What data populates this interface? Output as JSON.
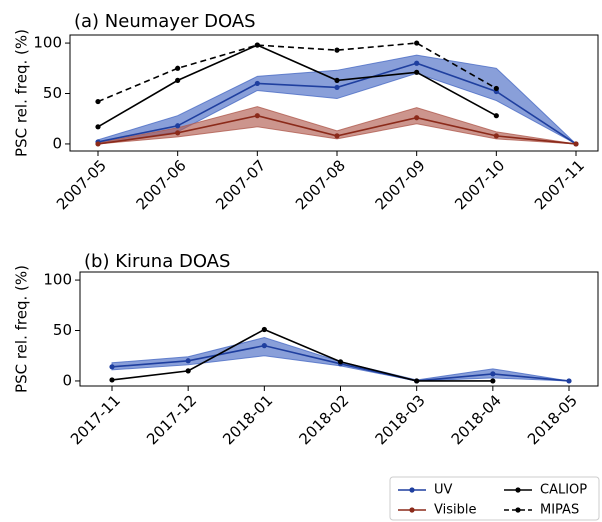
{
  "chart_data": [
    {
      "type": "line",
      "title": "(a) Neumayer DOAS",
      "ylabel": "PSC rel. freq. (%)",
      "categories": [
        "2007-05",
        "2007-06",
        "2007-07",
        "2007-08",
        "2007-09",
        "2007-10",
        "2007-11"
      ],
      "ylim": [
        -7,
        108
      ],
      "yticks": [
        0,
        50,
        100
      ],
      "series": [
        {
          "name": "UV",
          "color": "#1f3f9f",
          "band_color": "#4a6cc4",
          "linestyle": "solid",
          "values": [
            2,
            18,
            60,
            56,
            80,
            52,
            0
          ],
          "lower": [
            0,
            12,
            53,
            45,
            70,
            43,
            0
          ],
          "upper": [
            4,
            28,
            67,
            73,
            88,
            75,
            0
          ]
        },
        {
          "name": "Visible",
          "color": "#8b2a1a",
          "band_color": "#b05c50",
          "linestyle": "solid",
          "values": [
            0,
            11,
            28,
            8,
            26,
            8,
            0
          ],
          "lower": [
            0,
            7,
            17,
            5,
            20,
            5,
            0
          ],
          "upper": [
            1,
            16,
            37,
            13,
            36,
            12,
            0
          ]
        },
        {
          "name": "CALIOP",
          "color": "#000000",
          "linestyle": "solid",
          "values": [
            17,
            63,
            98,
            63,
            71,
            28,
            null
          ]
        },
        {
          "name": "MIPAS",
          "color": "#000000",
          "linestyle": "dashed",
          "values": [
            42,
            75,
            98,
            93,
            100,
            55,
            null
          ]
        }
      ]
    },
    {
      "type": "line",
      "title": "(b) Kiruna DOAS",
      "ylabel": "PSC rel. freq. (%)",
      "categories": [
        "2017-11",
        "2017-12",
        "2018-01",
        "2018-02",
        "2018-03",
        "2018-04",
        "2018-05"
      ],
      "ylim": [
        -5,
        108
      ],
      "yticks": [
        0,
        50,
        100
      ],
      "series": [
        {
          "name": "UV",
          "color": "#1f3f9f",
          "band_color": "#4a6cc4",
          "linestyle": "solid",
          "values": [
            14,
            20,
            35,
            17,
            0,
            7,
            0
          ],
          "lower": [
            11,
            16,
            25,
            15,
            0,
            3,
            0
          ],
          "upper": [
            18,
            24,
            43,
            19,
            1,
            12,
            0
          ]
        },
        {
          "name": "CALIOP",
          "color": "#000000",
          "linestyle": "solid",
          "values": [
            1,
            10,
            51,
            19,
            0,
            0,
            null
          ]
        }
      ]
    }
  ]
}
